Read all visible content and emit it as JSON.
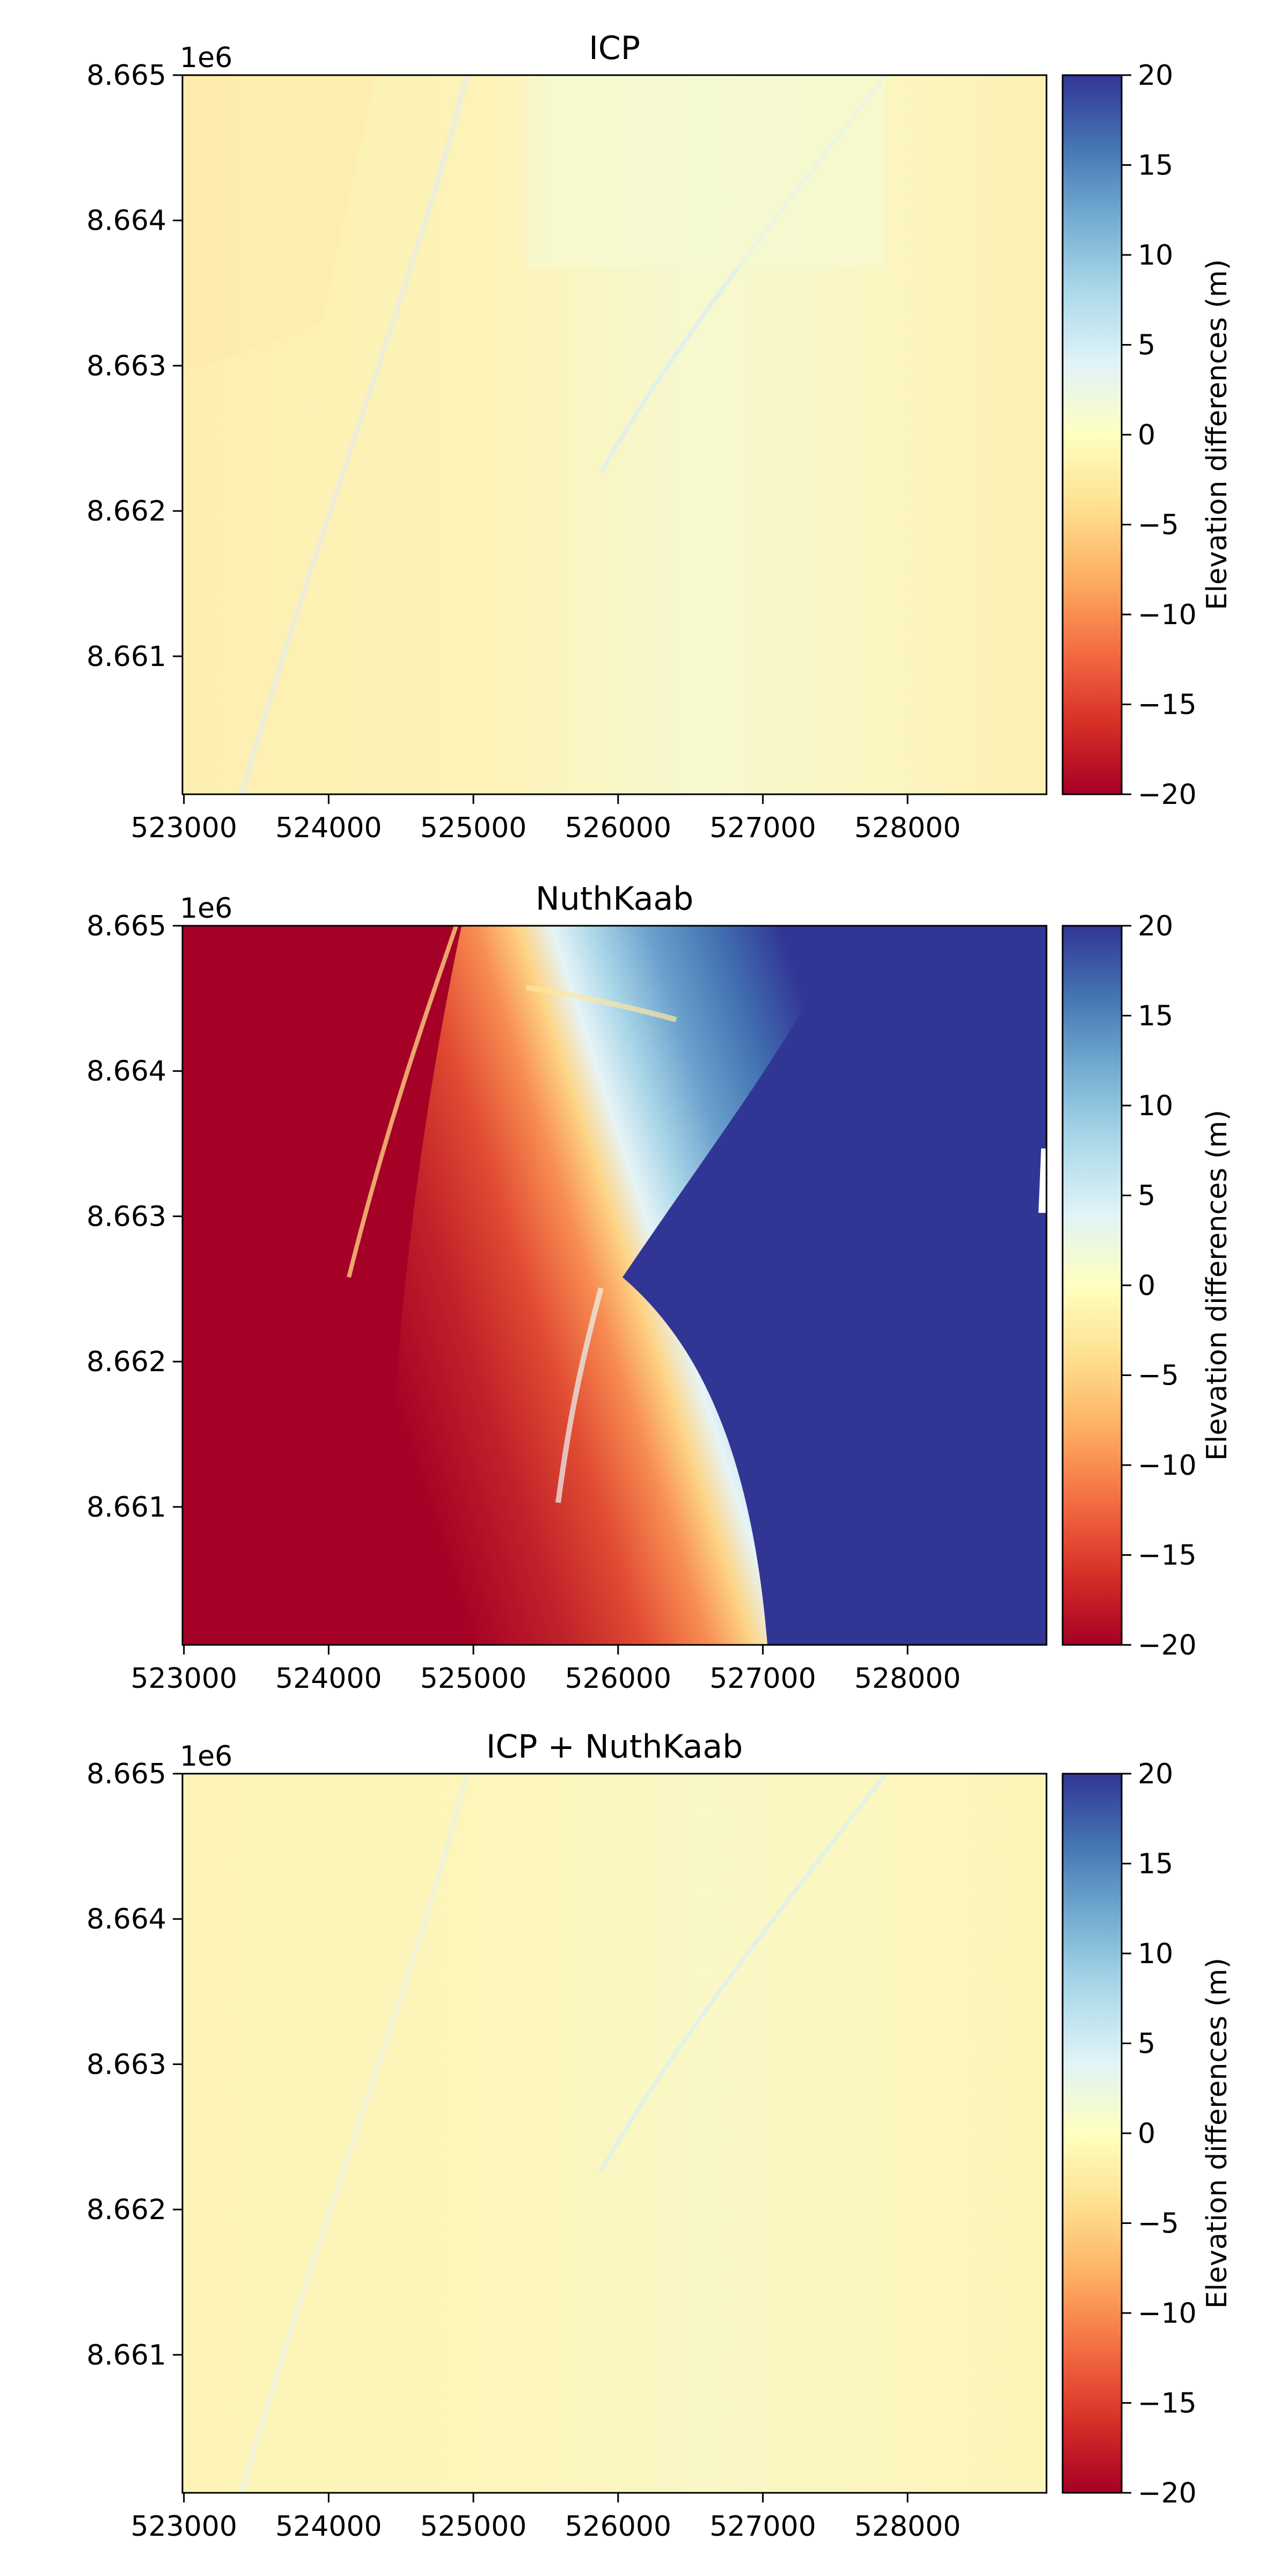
{
  "chart_data": [
    {
      "type": "heatmap",
      "title": "ICP",
      "x_ticks": [
        "523000",
        "524000",
        "525000",
        "526000",
        "527000",
        "528000"
      ],
      "x_tick_values": [
        523000,
        524000,
        525000,
        526000,
        527000,
        528000
      ],
      "xlim": [
        522990,
        528960
      ],
      "y_ticks": [
        "8.661",
        "8.662",
        "8.663",
        "8.664",
        "8.665"
      ],
      "y_tick_values": [
        8.661,
        8.662,
        8.663,
        8.664,
        8.665
      ],
      "ylim": [
        8.66005,
        8.665
      ],
      "y_offset_label": "1e6",
      "colormap": "RdYlBu",
      "color_range": [
        -20,
        20
      ],
      "colorbar_label": "Elevation differences (m)",
      "colorbar_ticks": [
        "20",
        "15",
        "10",
        "5",
        "0",
        "−5",
        "−10",
        "−15",
        "−20"
      ],
      "colorbar_tick_values": [
        20,
        15,
        10,
        5,
        0,
        -5,
        -10,
        -15,
        -20
      ],
      "field": "near-zero differences (~0 to +2 m) across the whole area with faint terrain-related streaks",
      "grid": false
    },
    {
      "type": "heatmap",
      "title": "NuthKaab",
      "x_ticks": [
        "523000",
        "524000",
        "525000",
        "526000",
        "527000",
        "528000"
      ],
      "x_tick_values": [
        523000,
        524000,
        525000,
        526000,
        527000,
        528000
      ],
      "xlim": [
        522990,
        528960
      ],
      "y_ticks": [
        "8.661",
        "8.662",
        "8.663",
        "8.664",
        "8.665"
      ],
      "y_tick_values": [
        8.661,
        8.662,
        8.663,
        8.664,
        8.665
      ],
      "ylim": [
        8.66005,
        8.665
      ],
      "y_offset_label": "1e6",
      "colormap": "RdYlBu",
      "color_range": [
        -20,
        20
      ],
      "colorbar_label": "Elevation differences (m)",
      "colorbar_ticks": [
        "20",
        "15",
        "10",
        "5",
        "0",
        "−5",
        "−10",
        "−15",
        "−20"
      ],
      "colorbar_tick_values": [
        20,
        15,
        10,
        5,
        0,
        -5,
        -10,
        -15,
        -20
      ],
      "field": "strong gradient: about -20 m on the west side, about +20 m on the east side, transition zone running diagonally near 525500-527500",
      "grid": false
    },
    {
      "type": "heatmap",
      "title": "ICP + NuthKaab",
      "x_ticks": [
        "523000",
        "524000",
        "525000",
        "526000",
        "527000",
        "528000"
      ],
      "x_tick_values": [
        523000,
        524000,
        525000,
        526000,
        527000,
        528000
      ],
      "xlim": [
        522990,
        528960
      ],
      "y_ticks": [
        "8.661",
        "8.662",
        "8.663",
        "8.664",
        "8.665"
      ],
      "y_tick_values": [
        8.661,
        8.662,
        8.663,
        8.664,
        8.665
      ],
      "ylim": [
        8.66005,
        8.665
      ],
      "y_offset_label": "1e6",
      "colormap": "RdYlBu",
      "color_range": [
        -20,
        20
      ],
      "colorbar_label": "Elevation differences (m)",
      "colorbar_ticks": [
        "20",
        "15",
        "10",
        "5",
        "0",
        "−5",
        "−10",
        "−15",
        "−20"
      ],
      "colorbar_tick_values": [
        20,
        15,
        10,
        5,
        0,
        -5,
        -10,
        -15,
        -20
      ],
      "field": "near-zero differences (~0 to +2 m) across the whole area with faint terrain-related streaks",
      "grid": false
    }
  ],
  "colors": {
    "colormap_stops": [
      "#a50026",
      "#d73027",
      "#f46d43",
      "#fdae61",
      "#fee090",
      "#ffffbf",
      "#e0f3f8",
      "#abd9e9",
      "#74add1",
      "#4575b4",
      "#313695"
    ],
    "near_zero": "#fdf5b8",
    "slight_positive": "#f4fad5",
    "strong_negative": "#a50026",
    "strong_positive": "#313695"
  }
}
